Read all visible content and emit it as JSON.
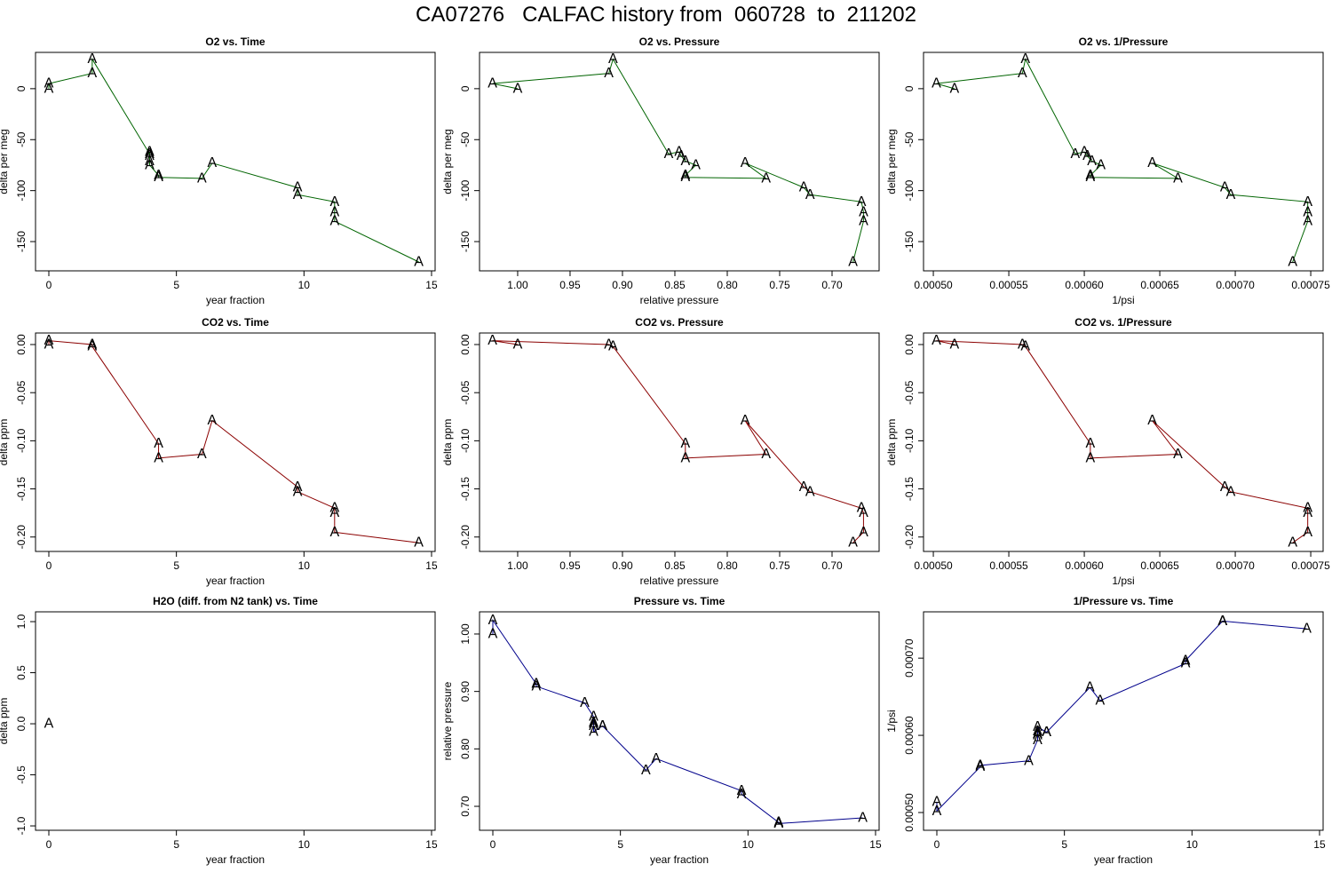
{
  "title": "CA07276   CALFAC history from  060728  to  211202",
  "chart_data": [
    {
      "type": "line",
      "title": "O2 vs. Time",
      "xlabel": "year fraction",
      "ylabel": "delta per meg",
      "marker": "A",
      "color": "#006400",
      "x": [
        0,
        0,
        1.7,
        1.7,
        3.95,
        3.95,
        3.95,
        3.95,
        3.95,
        4.3,
        4.3,
        6.0,
        6.4,
        9.75,
        9.75,
        11.2,
        11.2,
        11.2,
        14.5
      ],
      "values": [
        0,
        5,
        15,
        29,
        -64,
        -62,
        -66,
        -71,
        -75,
        -85,
        -87,
        -88,
        -73,
        -97,
        -104,
        -111,
        -121,
        -130,
        -170
      ],
      "xlim": [
        -0.522,
        15.14
      ],
      "ylim": [
        -178.7,
        35.6
      ],
      "xticks": [
        0,
        5,
        10,
        15
      ],
      "yticks": [
        -150,
        -100,
        -50,
        0
      ]
    },
    {
      "type": "line",
      "title": "O2 vs. Pressure",
      "xlabel": "relative pressure",
      "ylabel": "delta per meg",
      "marker": "A",
      "color": "#006400",
      "x": [
        1.0,
        1.024,
        0.913,
        0.909,
        0.856,
        0.846,
        0.844,
        0.84,
        0.83,
        0.84,
        0.84,
        0.763,
        0.783,
        0.727,
        0.721,
        0.672,
        0.67,
        0.67,
        0.68
      ],
      "values": [
        0,
        5,
        15,
        29,
        -64,
        -62,
        -66,
        -71,
        -75,
        -85,
        -87,
        -88,
        -73,
        -97,
        -104,
        -111,
        -121,
        -130,
        -170
      ],
      "xlim": [
        1.0364,
        0.6551
      ],
      "ylim": [
        -178.7,
        35.6
      ],
      "xticks": [
        {
          "value": 1,
          "label": "1.00"
        },
        0.95,
        {
          "value": 0.9,
          "label": "0.90"
        },
        0.85,
        {
          "value": 0.8,
          "label": "0.80"
        },
        0.75,
        {
          "value": 0.7,
          "label": "0.70"
        }
      ],
      "yticks": [
        -150,
        -100,
        -50,
        0
      ]
    },
    {
      "type": "line",
      "title": "O2 vs. 1/Pressure",
      "xlabel": "1/psi",
      "ylabel": "delta per meg",
      "marker": "A",
      "color": "#006400",
      "x": [
        0.000514,
        0.000502,
        0.000559,
        0.000561,
        0.000594,
        0.0006,
        0.000602,
        0.000605,
        0.000611,
        0.000604,
        0.000604,
        0.000662,
        0.000645,
        0.000693,
        0.000697,
        0.000748,
        0.000748,
        0.000748,
        0.000738
      ],
      "values": [
        0,
        5,
        15,
        29,
        -64,
        -62,
        -66,
        -71,
        -75,
        -85,
        -87,
        -88,
        -73,
        -97,
        -104,
        -111,
        -121,
        -130,
        -170
      ],
      "xlim": [
        0.0004935,
        0.0007582
      ],
      "ylim": [
        -178.7,
        35.6
      ],
      "xticks": [
        {
          "value": 0.0005,
          "label": "0.00050"
        },
        {
          "value": 0.00055,
          "label": "0.00055"
        },
        {
          "value": 0.0006,
          "label": "0.00060"
        },
        {
          "value": 0.00065,
          "label": "0.00065"
        },
        {
          "value": 0.0007,
          "label": "0.00070"
        },
        {
          "value": 0.00075,
          "label": "0.00075"
        }
      ],
      "yticks": [
        -150,
        -100,
        -50,
        0
      ]
    },
    {
      "type": "line",
      "title": "CO2 vs. Time",
      "xlabel": "year fraction",
      "ylabel": "delta ppm",
      "marker": "A",
      "color": "#8b0000",
      "x": [
        0,
        0,
        1.7,
        1.7,
        4.3,
        4.3,
        6.0,
        6.4,
        9.75,
        9.75,
        11.2,
        11.2,
        11.2,
        14.5
      ],
      "values": [
        0,
        0.004,
        0,
        -0.002,
        -0.103,
        -0.118,
        -0.114,
        -0.079,
        -0.148,
        -0.153,
        -0.17,
        -0.175,
        -0.195,
        -0.206
      ],
      "xlim": [
        -0.522,
        15.14
      ],
      "ylim": [
        -0.215,
        0.012
      ],
      "xticks": [
        0,
        5,
        10,
        15
      ],
      "yticks": [
        {
          "value": -0.2,
          "label": "-0.20"
        },
        -0.15,
        {
          "value": -0.1,
          "label": "-0.10"
        },
        -0.05,
        {
          "value": 0,
          "label": "0.00"
        }
      ]
    },
    {
      "type": "line",
      "title": "CO2 vs. Pressure",
      "xlabel": "relative pressure",
      "ylabel": "delta ppm",
      "marker": "A",
      "color": "#8b0000",
      "x": [
        1.0,
        1.024,
        0.913,
        0.909,
        0.84,
        0.84,
        0.763,
        0.783,
        0.727,
        0.721,
        0.672,
        0.67,
        0.67,
        0.68
      ],
      "values": [
        0,
        0.004,
        0,
        -0.002,
        -0.103,
        -0.118,
        -0.114,
        -0.079,
        -0.148,
        -0.153,
        -0.17,
        -0.175,
        -0.195,
        -0.206
      ],
      "xlim": [
        1.0364,
        0.6551
      ],
      "ylim": [
        -0.215,
        0.012
      ],
      "xticks": [
        {
          "value": 1,
          "label": "1.00"
        },
        0.95,
        {
          "value": 0.9,
          "label": "0.90"
        },
        0.85,
        {
          "value": 0.8,
          "label": "0.80"
        },
        0.75,
        {
          "value": 0.7,
          "label": "0.70"
        }
      ],
      "yticks": [
        {
          "value": -0.2,
          "label": "-0.20"
        },
        -0.15,
        {
          "value": -0.1,
          "label": "-0.10"
        },
        -0.05,
        {
          "value": 0,
          "label": "0.00"
        }
      ]
    },
    {
      "type": "line",
      "title": "CO2 vs. 1/Pressure",
      "xlabel": "1/psi",
      "ylabel": "delta ppm",
      "marker": "A",
      "color": "#8b0000",
      "x": [
        0.000514,
        0.000502,
        0.000559,
        0.000561,
        0.000604,
        0.000604,
        0.000662,
        0.000645,
        0.000693,
        0.000697,
        0.000748,
        0.000748,
        0.000748,
        0.000738
      ],
      "values": [
        0,
        0.004,
        0,
        -0.002,
        -0.103,
        -0.118,
        -0.114,
        -0.079,
        -0.148,
        -0.153,
        -0.17,
        -0.175,
        -0.195,
        -0.206
      ],
      "xlim": [
        0.0004935,
        0.0007582
      ],
      "ylim": [
        -0.215,
        0.012
      ],
      "xticks": [
        {
          "value": 0.0005,
          "label": "0.00050"
        },
        {
          "value": 0.00055,
          "label": "0.00055"
        },
        {
          "value": 0.0006,
          "label": "0.00060"
        },
        {
          "value": 0.00065,
          "label": "0.00065"
        },
        {
          "value": 0.0007,
          "label": "0.00070"
        },
        {
          "value": 0.00075,
          "label": "0.00075"
        }
      ],
      "yticks": [
        {
          "value": -0.2,
          "label": "-0.20"
        },
        -0.15,
        {
          "value": -0.1,
          "label": "-0.10"
        },
        -0.05,
        {
          "value": 0,
          "label": "0.00"
        }
      ]
    },
    {
      "type": "scatter",
      "title": "H2O (diff. from N2 tank) vs. Time",
      "xlabel": "year fraction",
      "ylabel": "delta ppm",
      "marker": "A",
      "color": "#a020f0",
      "x": [
        0
      ],
      "values": [
        0
      ],
      "xlim": [
        -0.522,
        15.14
      ],
      "ylim": [
        -1.043,
        1.096
      ],
      "xticks": [
        0,
        5,
        10,
        15
      ],
      "yticks": [
        {
          "value": -1,
          "label": "-1.0"
        },
        -0.5,
        {
          "value": 0,
          "label": "0.0"
        },
        0.5,
        {
          "value": 1,
          "label": "1.0"
        }
      ]
    },
    {
      "type": "line",
      "title": "Pressure vs. Time",
      "xlabel": "year fraction",
      "ylabel": "relative pressure",
      "marker": "A",
      "color": "#00008b",
      "x": [
        0,
        0,
        1.7,
        1.7,
        3.6,
        3.95,
        3.95,
        3.95,
        3.95,
        3.95,
        4.3,
        4.3,
        6.0,
        6.4,
        9.75,
        9.75,
        11.2,
        11.2,
        11.2,
        14.5
      ],
      "values": [
        1.0,
        1.024,
        0.913,
        0.909,
        0.88,
        0.856,
        0.846,
        0.844,
        0.84,
        0.83,
        0.84,
        0.84,
        0.763,
        0.783,
        0.727,
        0.721,
        0.672,
        0.67,
        0.67,
        0.68
      ],
      "xlim": [
        -0.522,
        15.14
      ],
      "ylim": [
        0.6583,
        1.0386
      ],
      "xticks": [
        0,
        5,
        10,
        15
      ],
      "yticks": [
        {
          "value": 0.7,
          "label": "0.70"
        },
        {
          "value": 0.8,
          "label": "0.80"
        },
        {
          "value": 0.9,
          "label": "0.90"
        },
        {
          "value": 1,
          "label": "1.00"
        }
      ]
    },
    {
      "type": "line",
      "title": "1/Pressure vs. Time",
      "xlabel": "year fraction",
      "ylabel": "1/psi",
      "marker": "A",
      "color": "#00008b",
      "x": [
        0,
        0,
        1.7,
        1.7,
        3.6,
        3.95,
        3.95,
        3.95,
        3.95,
        3.95,
        4.3,
        4.3,
        6.0,
        6.4,
        9.75,
        9.75,
        11.2,
        11.2,
        11.2,
        14.5
      ],
      "values": [
        0.000514,
        0.000502,
        0.000559,
        0.000561,
        0.000567,
        0.000594,
        0.0006,
        0.000602,
        0.000605,
        0.000611,
        0.000604,
        0.000604,
        0.000662,
        0.000645,
        0.000693,
        0.000697,
        0.000748,
        0.000748,
        0.000748,
        0.000738
      ],
      "xlim": [
        -0.522,
        15.14
      ],
      "ylim": [
        0.000477,
        0.00076
      ],
      "xticks": [
        0,
        5,
        10,
        15
      ],
      "yticks": [
        {
          "value": 0.0005,
          "label": "0.00050"
        },
        {
          "value": 0.0006,
          "label": "0.00060"
        },
        {
          "value": 0.0007,
          "label": "0.00070"
        }
      ]
    }
  ]
}
